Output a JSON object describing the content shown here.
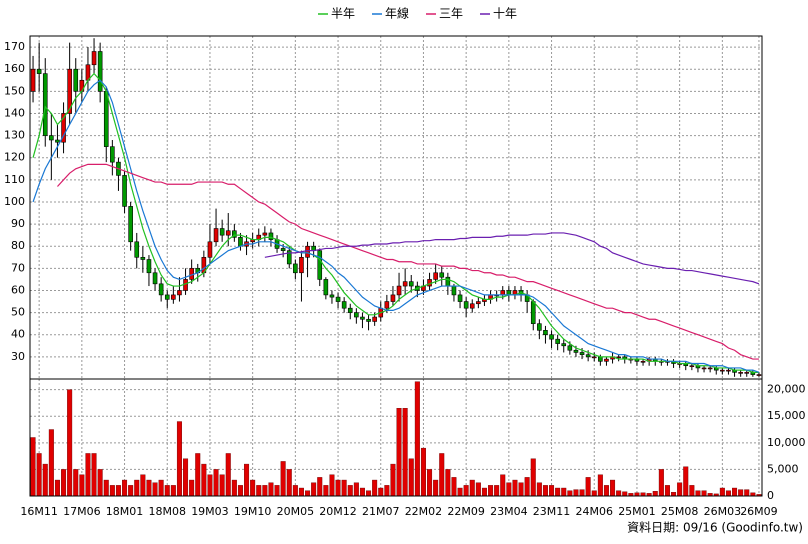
{
  "chart_data": [
    {
      "type": "candlestick",
      "up_color": "#e00000",
      "down_color": "#009900",
      "ylim": [
        20,
        175
      ],
      "yticks": [
        30,
        40,
        50,
        60,
        70,
        80,
        90,
        100,
        110,
        120,
        130,
        140,
        150,
        160,
        170
      ],
      "grid": true,
      "open": [
        150,
        160,
        158,
        130,
        128,
        127,
        140,
        160,
        150,
        155,
        162,
        168,
        150,
        125,
        118,
        112,
        98,
        82,
        75,
        74,
        68,
        63,
        58,
        56,
        58,
        60,
        65,
        70,
        68,
        75,
        82,
        88,
        85,
        87,
        84,
        80,
        82,
        83,
        85,
        86,
        83,
        79,
        78,
        72,
        68,
        75,
        80,
        78,
        65,
        58,
        57,
        55,
        52,
        50,
        48,
        47,
        46,
        48,
        52,
        55,
        58,
        62,
        64,
        62,
        60,
        62,
        65,
        68,
        66,
        62,
        58,
        55,
        52,
        54,
        55,
        56,
        58,
        58,
        60,
        58,
        60,
        58,
        55,
        45,
        42,
        40,
        38,
        36,
        35,
        33,
        32,
        31,
        30,
        30,
        28,
        29,
        30,
        30,
        29,
        29,
        28,
        28,
        29,
        28,
        28,
        28,
        27,
        27,
        26,
        26,
        25,
        25,
        25,
        24,
        24,
        24,
        23,
        23,
        23,
        22
      ],
      "high": [
        166,
        172,
        165,
        140,
        135,
        145,
        172,
        165,
        160,
        170,
        174,
        172,
        152,
        128,
        120,
        114,
        100,
        86,
        80,
        76,
        70,
        66,
        60,
        62,
        66,
        70,
        74,
        72,
        78,
        90,
        97,
        92,
        95,
        90,
        86,
        85,
        86,
        88,
        89,
        88,
        85,
        81,
        80,
        74,
        78,
        82,
        82,
        79,
        66,
        60,
        59,
        57,
        54,
        52,
        50,
        49,
        50,
        55,
        58,
        62,
        68,
        70,
        67,
        64,
        65,
        68,
        72,
        71,
        68,
        63,
        60,
        57,
        56,
        57,
        58,
        60,
        60,
        62,
        62,
        62,
        62,
        60,
        56,
        47,
        44,
        42,
        40,
        38,
        37,
        35,
        34,
        33,
        32,
        31,
        30,
        32,
        31,
        31,
        30,
        30,
        29,
        30,
        30,
        29,
        29,
        29,
        28,
        28,
        27,
        27,
        26,
        26,
        26,
        25,
        25,
        25,
        24,
        24,
        24,
        23
      ],
      "low": [
        145,
        150,
        125,
        110,
        120,
        122,
        135,
        140,
        145,
        150,
        158,
        145,
        118,
        112,
        105,
        95,
        78,
        70,
        68,
        62,
        60,
        55,
        52,
        54,
        55,
        58,
        63,
        64,
        66,
        72,
        80,
        82,
        80,
        82,
        78,
        76,
        79,
        80,
        82,
        80,
        77,
        75,
        70,
        65,
        55,
        66,
        75,
        62,
        56,
        54,
        52,
        50,
        47,
        45,
        43,
        42,
        44,
        46,
        50,
        53,
        55,
        58,
        59,
        57,
        58,
        60,
        63,
        62,
        58,
        55,
        52,
        48,
        50,
        52,
        53,
        54,
        55,
        56,
        55,
        56,
        55,
        50,
        42,
        38,
        36,
        34,
        33,
        32,
        31,
        30,
        29,
        28,
        28,
        26,
        26,
        27,
        28,
        27,
        27,
        26,
        26,
        26,
        26,
        26,
        26,
        25,
        25,
        24,
        24,
        23,
        23,
        23,
        22,
        22,
        22,
        21,
        21,
        21,
        21,
        21
      ],
      "close": [
        160,
        158,
        130,
        128,
        127,
        140,
        160,
        150,
        155,
        162,
        168,
        150,
        125,
        118,
        112,
        98,
        82,
        75,
        74,
        68,
        63,
        58,
        56,
        58,
        60,
        65,
        70,
        68,
        75,
        82,
        88,
        85,
        87,
        84,
        80,
        82,
        83,
        85,
        86,
        83,
        79,
        78,
        72,
        68,
        75,
        80,
        78,
        65,
        58,
        57,
        55,
        52,
        50,
        48,
        47,
        46,
        48,
        52,
        55,
        58,
        62,
        64,
        62,
        60,
        62,
        65,
        68,
        66,
        62,
        58,
        55,
        52,
        54,
        55,
        56,
        58,
        58,
        60,
        58,
        60,
        58,
        55,
        45,
        42,
        40,
        38,
        36,
        35,
        33,
        32,
        31,
        30,
        30,
        28,
        29,
        30,
        30,
        29,
        29,
        28,
        28,
        29,
        28,
        28,
        28,
        27,
        27,
        26,
        26,
        25,
        25,
        25,
        24,
        24,
        24,
        23,
        23,
        23,
        22,
        22
      ],
      "series": [
        {
          "name": "半年",
          "color": "#22c022",
          "values": [
            120,
            130,
            143,
            140,
            135,
            138,
            142,
            147,
            150,
            155,
            158,
            155,
            150,
            140,
            130,
            120,
            108,
            98,
            88,
            80,
            73,
            67,
            63,
            62,
            62,
            63,
            64,
            66,
            68,
            72,
            76,
            80,
            83,
            85,
            85,
            84,
            83,
            83,
            84,
            84,
            83,
            82,
            80,
            78,
            77,
            77,
            76,
            74,
            70,
            67,
            63,
            59,
            56,
            53,
            51,
            49,
            49,
            50,
            51,
            53,
            56,
            58,
            60,
            61,
            62,
            63,
            64,
            65,
            65,
            64,
            62,
            60,
            58,
            57,
            56,
            56,
            57,
            57,
            58,
            58,
            59,
            58,
            55,
            52,
            48,
            44,
            41,
            38,
            36,
            34,
            33,
            32,
            31,
            30,
            30,
            30,
            29,
            29,
            29,
            29,
            29,
            28,
            28,
            28,
            28,
            28,
            27,
            27,
            27,
            26,
            26,
            26,
            25,
            25,
            25,
            24,
            24,
            24,
            23,
            23
          ]
        },
        {
          "name": "年線",
          "color": "#1a78d4",
          "values": [
            100,
            108,
            115,
            120,
            125,
            130,
            135,
            140,
            145,
            150,
            153,
            155,
            152,
            145,
            135,
            125,
            115,
            105,
            96,
            88,
            80,
            74,
            69,
            66,
            65,
            66,
            67,
            68,
            70,
            72,
            74,
            76,
            78,
            79,
            80,
            81,
            81,
            82,
            82,
            82,
            81,
            80,
            79,
            78,
            77,
            77,
            76,
            75,
            73,
            71,
            68,
            66,
            63,
            60,
            57,
            55,
            53,
            52,
            51,
            51,
            52,
            54,
            56,
            58,
            59,
            60,
            61,
            62,
            62,
            62,
            62,
            61,
            60,
            59,
            58,
            58,
            58,
            58,
            58,
            58,
            58,
            58,
            57,
            55,
            53,
            50,
            47,
            44,
            42,
            40,
            38,
            36,
            35,
            34,
            33,
            32,
            31,
            31,
            30,
            30,
            30,
            29,
            29,
            29,
            28,
            28,
            28,
            28,
            27,
            27,
            27,
            26,
            26,
            26,
            25,
            25,
            25,
            24,
            24,
            23
          ]
        },
        {
          "name": "三年",
          "color": "#d81e6a",
          "values": [
            null,
            null,
            null,
            null,
            107,
            110,
            113,
            115,
            116,
            117,
            117,
            117,
            117,
            116,
            115,
            114,
            113,
            112,
            111,
            110,
            109,
            109,
            108,
            108,
            108,
            108,
            108,
            109,
            109,
            109,
            109,
            109,
            108,
            108,
            106,
            104,
            102,
            100,
            99,
            97,
            95,
            93,
            91,
            90,
            88,
            87,
            86,
            85,
            84,
            83,
            82,
            81,
            80,
            79,
            78,
            77,
            76,
            75,
            74,
            74,
            73,
            73,
            73,
            72,
            72,
            72,
            72,
            71,
            71,
            71,
            70,
            70,
            69,
            69,
            68,
            68,
            67,
            67,
            66,
            66,
            65,
            64,
            64,
            63,
            62,
            61,
            60,
            59,
            58,
            57,
            56,
            55,
            54,
            53,
            52,
            52,
            51,
            50,
            50,
            49,
            48,
            47,
            47,
            46,
            45,
            44,
            43,
            42,
            41,
            40,
            39,
            38,
            37,
            36,
            34,
            33,
            31,
            30,
            29,
            29
          ]
        },
        {
          "name": "十年",
          "color": "#6a1fb0",
          "values": [
            null,
            null,
            null,
            null,
            null,
            null,
            null,
            null,
            null,
            null,
            null,
            null,
            null,
            null,
            null,
            null,
            null,
            null,
            null,
            null,
            null,
            null,
            null,
            null,
            null,
            null,
            null,
            null,
            null,
            null,
            null,
            null,
            null,
            null,
            null,
            null,
            null,
            null,
            75,
            75.5,
            76,
            76.5,
            77,
            77,
            77.5,
            78,
            78,
            78.5,
            79,
            79,
            79.5,
            80,
            80,
            80,
            80.5,
            80.5,
            81,
            81,
            81,
            81.5,
            81.5,
            82,
            82,
            82,
            82.5,
            82.5,
            83,
            83,
            83,
            83,
            83.5,
            83.5,
            84,
            84,
            84,
            84,
            84.5,
            84.5,
            85,
            85,
            85,
            85,
            85.5,
            85.5,
            85.5,
            86,
            86,
            86,
            85.5,
            85,
            84,
            83,
            82,
            80,
            79,
            77,
            76,
            75,
            74,
            73,
            72,
            71.5,
            71,
            70.5,
            70,
            70,
            69.5,
            69,
            69,
            68.5,
            68,
            67.5,
            67,
            66.5,
            66,
            65.5,
            65,
            64.5,
            64,
            63
          ]
        }
      ]
    },
    {
      "type": "bar",
      "color": "#e00000",
      "ylim": [
        0,
        22000
      ],
      "yticks": [
        0,
        {
          "value": 5000,
          "label": "5,000"
        },
        {
          "value": 10000,
          "label": "10,000"
        },
        {
          "value": 15000,
          "label": "15,000"
        },
        {
          "value": 20000,
          "label": "20,000"
        }
      ],
      "grid": true,
      "categories": [
        null,
        "16M11",
        null,
        null,
        null,
        null,
        null,
        null,
        "17M06",
        null,
        null,
        null,
        null,
        null,
        null,
        "18M01",
        null,
        null,
        null,
        null,
        null,
        null,
        "18M08",
        null,
        null,
        null,
        null,
        null,
        null,
        "19M03",
        null,
        null,
        null,
        null,
        null,
        null,
        "19M10",
        null,
        null,
        null,
        null,
        null,
        null,
        "20M05",
        null,
        null,
        null,
        null,
        null,
        null,
        "20M12",
        null,
        null,
        null,
        null,
        null,
        null,
        "21M07",
        null,
        null,
        null,
        null,
        null,
        null,
        "22M02",
        null,
        null,
        null,
        null,
        null,
        null,
        "22M09",
        null,
        null,
        null,
        null,
        null,
        null,
        "23M04",
        null,
        null,
        null,
        null,
        null,
        null,
        "23M11",
        null,
        null,
        null,
        null,
        null,
        null,
        "24M06",
        null,
        null,
        null,
        null,
        null,
        null,
        "25M01",
        null,
        null,
        null,
        null,
        null,
        null,
        "25M08",
        null,
        null,
        null,
        null,
        null,
        null,
        "26M03",
        null,
        null,
        null,
        null,
        null,
        "26M09"
      ],
      "values": [
        11000,
        8000,
        6000,
        12500,
        3000,
        5000,
        20000,
        5000,
        4000,
        8000,
        8000,
        5000,
        3000,
        2000,
        2000,
        3000,
        2000,
        3000,
        4000,
        3000,
        2500,
        3000,
        2000,
        2000,
        14000,
        7000,
        3000,
        8000,
        6000,
        4000,
        5000,
        4000,
        8000,
        3000,
        2000,
        6000,
        3000,
        2000,
        2000,
        2500,
        2000,
        6500,
        5000,
        2000,
        1500,
        1000,
        2500,
        3500,
        2000,
        4000,
        3000,
        3000,
        2000,
        2500,
        1500,
        1000,
        3000,
        1500,
        2000,
        6000,
        16500,
        16500,
        7000,
        21500,
        9000,
        5000,
        3000,
        8000,
        5000,
        3500,
        1500,
        2000,
        3000,
        2500,
        1500,
        2000,
        2000,
        4000,
        2500,
        3000,
        2500,
        3500,
        7000,
        2500,
        2000,
        2000,
        1500,
        1500,
        1000,
        1200,
        1200,
        3500,
        1000,
        4000,
        2000,
        3000,
        1000,
        800,
        500,
        600,
        600,
        500,
        900,
        5000,
        2000,
        700,
        2500,
        5500,
        2000,
        1000,
        1000,
        500,
        400,
        1500,
        1000,
        1500,
        1200,
        1200,
        600,
        300
      ],
      "source": "資料日期: 09/16 (Goodinfo.tw)"
    }
  ]
}
